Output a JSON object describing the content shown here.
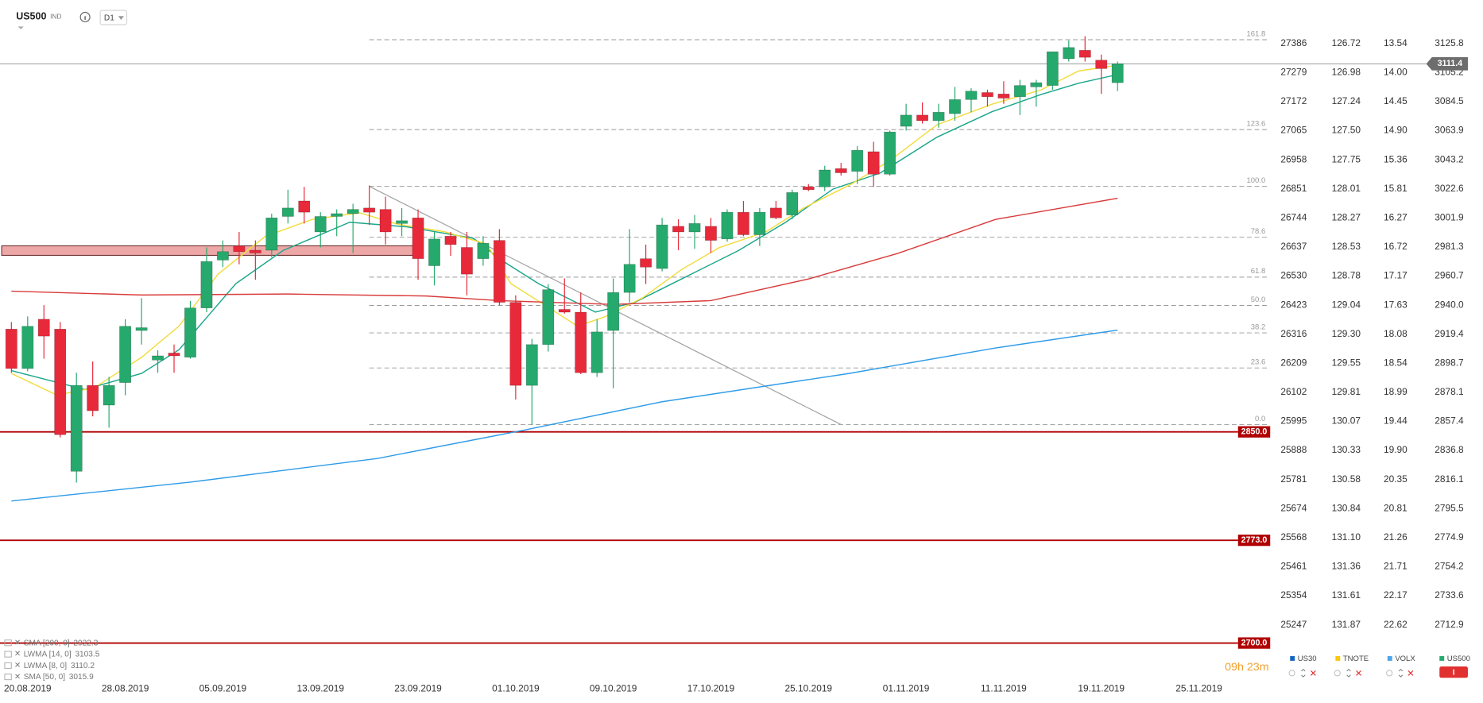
{
  "header": {
    "symbol": "US500",
    "kind": "IND",
    "timeframe": "D1"
  },
  "chart_data": {
    "type": "candlestick",
    "xlim": [
      -0.7,
      77.44
    ],
    "ylim": [
      2692.1,
      3156.7
    ],
    "xticks": [
      {
        "value": 1,
        "label": "20.08.2019"
      },
      {
        "value": 7,
        "label": "28.08.2019"
      },
      {
        "value": 13,
        "label": "05.09.2019"
      },
      {
        "value": 19,
        "label": "13.09.2019"
      },
      {
        "value": 25,
        "label": "23.09.2019"
      },
      {
        "value": 31,
        "label": "01.10.2019"
      },
      {
        "value": 37,
        "label": "09.10.2019"
      },
      {
        "value": 43,
        "label": "17.10.2019"
      },
      {
        "value": 49,
        "label": "25.10.2019"
      },
      {
        "value": 55,
        "label": "01.11.2019"
      },
      {
        "value": 61,
        "label": "11.11.2019"
      },
      {
        "value": 67,
        "label": "19.11.2019"
      },
      {
        "value": 73,
        "label": "25.11.2019"
      }
    ],
    "yticks": [
      3125.8,
      3105.2,
      3084.5,
      3063.9,
      3043.2,
      3022.6,
      3001.9,
      2981.3,
      2960.7,
      {
        "value": 2940,
        "label": "2940.0"
      },
      2919.4,
      2898.7,
      2878.1,
      2857.4,
      2836.8,
      2816.1,
      2795.5,
      2774.9,
      2754.2,
      2733.6,
      2712.9
    ],
    "series": [
      {
        "name": "US500",
        "color_up": "#26a96c",
        "color_down": "#e8293a",
        "open": [
          2923,
          2895,
          2930,
          2923,
          2822,
          2883,
          2869,
          2885,
          2922,
          2901,
          2906,
          2903,
          2938,
          2972,
          2982,
          2979,
          2979,
          3003,
          3014,
          2992,
          3003,
          3005,
          3009,
          3008,
          2998,
          3002,
          2968,
          2989,
          2981,
          2973,
          2986,
          2942,
          2883,
          2912,
          2937,
          2935,
          2892,
          2922,
          2949,
          2973,
          2966,
          2996,
          2992,
          2996,
          2987,
          3006,
          2990,
          3009,
          3004,
          3024,
          3024,
          3037,
          3035,
          3049,
          3033,
          3067,
          3075,
          3071,
          3076,
          3086,
          3091,
          3090,
          3088,
          3095,
          3096,
          3115,
          3121,
          3114,
          3098
        ],
        "high": [
          2928,
          2932,
          2940,
          2928,
          2892,
          2900,
          2889,
          2930,
          2945,
          2908,
          2912,
          2943,
          2981,
          2986,
          2992,
          2986,
          3005,
          3022,
          3024,
          3006,
          3008,
          3012,
          3025,
          3017,
          3009,
          3008,
          2992,
          2992,
          2992,
          2989,
          2994,
          2947,
          2916,
          2955,
          2959,
          2949,
          2930,
          2959,
          2994,
          2983,
          3002,
          3001,
          3004,
          3002,
          3008,
          3014,
          3009,
          3014,
          3022,
          3026,
          3039,
          3041,
          3053,
          3056,
          3064,
          3083,
          3084,
          3083,
          3095,
          3094,
          3093,
          3099,
          3100,
          3100,
          3120,
          3128,
          3131,
          3118,
          3113
        ],
        "low": [
          2892,
          2893,
          2902,
          2846,
          2814,
          2861,
          2853,
          2876,
          2912,
          2892,
          2892,
          2902,
          2935,
          2967,
          2969,
          2958,
          2974,
          2998,
          2998,
          2981,
          2989,
          2977,
          2997,
          2983,
          2989,
          2958,
          2954,
          2975,
          2947,
          2968,
          2940,
          2873,
          2855,
          2907,
          2934,
          2891,
          2889,
          2881,
          2942,
          2955,
          2964,
          2979,
          2980,
          2977,
          2985,
          2989,
          2982,
          3001,
          3001,
          3021,
          3021,
          3032,
          3026,
          3024,
          3032,
          3064,
          3069,
          3066,
          3071,
          3077,
          3081,
          3083,
          3075,
          3081,
          3093,
          3113,
          3113,
          3090,
          3092
        ],
        "close": [
          2895,
          2925,
          2918,
          2848,
          2883,
          2865,
          2883,
          2925,
          2924,
          2904,
          2904,
          2938,
          2971,
          2978,
          2978,
          2977,
          3002,
          3009,
          3006,
          3003,
          3005,
          3008,
          3006,
          2992,
          3000,
          2973,
          2987,
          2983,
          2962,
          2984,
          2942,
          2883,
          2912,
          2951,
          2935,
          2892,
          2921,
          2949,
          2969,
          2967,
          2997,
          2992,
          2998,
          2986,
          3006,
          2990,
          3006,
          3002,
          3020,
          3022,
          3036,
          3034,
          3050,
          3033,
          3063,
          3075,
          3071,
          3077,
          3086,
          3092,
          3088,
          3087,
          3096,
          3098,
          3120,
          3123,
          3116,
          3108,
          3111.4
        ]
      }
    ],
    "indicators": [
      {
        "name": "SMA [200, 0]",
        "color": "#2e9be8",
        "x": [
          0,
          11,
          22.5,
          31.5,
          40,
          51.5,
          60.5,
          68
        ],
        "values": [
          2800.9,
          2814.3,
          2831.1,
          2851.2,
          2871.4,
          2891.5,
          2909.6,
          2922.3
        ]
      },
      {
        "name": "LWMA [14, 0]",
        "color": "#1aa68a",
        "x": [
          0,
          4.5,
          8,
          10.3,
          13.8,
          16.7,
          20.8,
          24.3,
          28.4,
          30.1,
          32.4,
          35.9,
          38.3,
          41.2,
          44.7,
          47.6,
          50.5,
          53.4,
          56.9,
          60.3,
          63.3,
          65.6,
          67.9
        ],
        "values": [
          2893.5,
          2880.1,
          2891.5,
          2908.3,
          2955.3,
          2978.8,
          2998.9,
          2995.6,
          2987.5,
          2972.1,
          2955.3,
          2935.1,
          2941.9,
          2958.6,
          2978.8,
          2998.9,
          3022.4,
          3033.8,
          3059.3,
          3077.5,
          3089.6,
          3097.6,
          3103.5
        ]
      },
      {
        "name": "LWMA [8, 0]",
        "color": "#f2dc3c",
        "x": [
          0,
          2.8,
          5.1,
          8,
          10.3,
          12.7,
          15.6,
          18.5,
          21.4,
          23.7,
          26.6,
          29.2,
          30.7,
          33,
          34.8,
          36.5,
          38.8,
          41.2,
          43.5,
          46.4,
          48.7,
          51.6,
          54,
          56.9,
          60.3,
          63.3,
          65.6,
          67.9
        ],
        "values": [
          2891.5,
          2876.1,
          2881.4,
          2902.9,
          2925.1,
          2962,
          2988.8,
          3000.9,
          3005.6,
          2997.6,
          2992.2,
          2983.5,
          2955.3,
          2938.5,
          2925.1,
          2931.8,
          2945.2,
          2965.3,
          2980.8,
          2992.2,
          3009,
          3025.8,
          3042.6,
          3068.1,
          3082.8,
          3092.9,
          3106.3,
          3110.2
        ]
      },
      {
        "name": "SMA [50, 0]",
        "color": "#d93b3b",
        "x": [
          0,
          8,
          17,
          25.5,
          30,
          37,
          43,
          49,
          54.5,
          60.5,
          68
        ],
        "values": [
          2949.9,
          2947.2,
          2947.9,
          2946.5,
          2943.2,
          2940.5,
          2943.2,
          2958.6,
          2976.8,
          3000.9,
          3015.9
        ]
      }
    ],
    "fibonacci": {
      "x": 22,
      "levels": [
        {
          "label": "161.8",
          "price": 3128.5
        },
        {
          "label": "123.6",
          "price": 3064.7
        },
        {
          "label": "100.0",
          "price": 3024.4
        },
        {
          "label": "78.6",
          "price": 2988.2
        },
        {
          "label": "61.8",
          "price": 2959.9
        },
        {
          "label": "50.0",
          "price": 2939.8
        },
        {
          "label": "38.2",
          "price": 2920.3
        },
        {
          "label": "23.6",
          "price": 2895.4
        },
        {
          "label": "0.0",
          "price": 2855.2
        }
      ]
    },
    "hlines": [
      {
        "value": 2850,
        "label": "2850.0"
      },
      {
        "value": 2773,
        "label": "2773.0"
      },
      {
        "value": 2700,
        "label": "2700.0"
      }
    ],
    "hline_color": "#b00000",
    "current": 3111.4,
    "zone": {
      "x": [
        -0.6,
        24.9
      ],
      "values": [
        2982.1,
        2975.4
      ]
    },
    "trendline": {
      "x": [
        22,
        51
      ],
      "values": [
        3024.4,
        2855.2
      ]
    },
    "compare_axes": [
      {
        "name": "US30",
        "color": "#1565c0",
        "ticks": [
          "27386",
          "27279",
          "27172",
          "27065",
          "26958",
          "26851",
          "26744",
          "26637",
          "26530",
          "26423",
          "26316",
          "26209",
          "26102",
          "25995",
          "25888",
          "25781",
          "25674",
          "25568",
          "25461",
          "25354",
          "25247"
        ]
      },
      {
        "name": "TNOTE",
        "color": "#f9c80e",
        "ticks": [
          "126.72",
          "126.98",
          "127.24",
          "127.50",
          "127.75",
          "128.01",
          "128.27",
          "128.53",
          "128.78",
          "129.04",
          "129.30",
          "129.55",
          "129.81",
          "130.07",
          "130.33",
          "130.58",
          "130.84",
          "131.10",
          "131.36",
          "131.61",
          "131.87"
        ]
      },
      {
        "name": "VOLX",
        "color": "#4da6e8",
        "ticks": [
          "13.54",
          "14.00",
          "14.45",
          "14.90",
          "15.36",
          "15.81",
          "16.27",
          "16.72",
          "17.17",
          "17.63",
          "18.08",
          "18.54",
          "18.99",
          "19.44",
          "19.90",
          "20.35",
          "20.81",
          "21.26",
          "21.71",
          "22.17",
          "22.62"
        ]
      }
    ],
    "timer": "09h 23m"
  }
}
